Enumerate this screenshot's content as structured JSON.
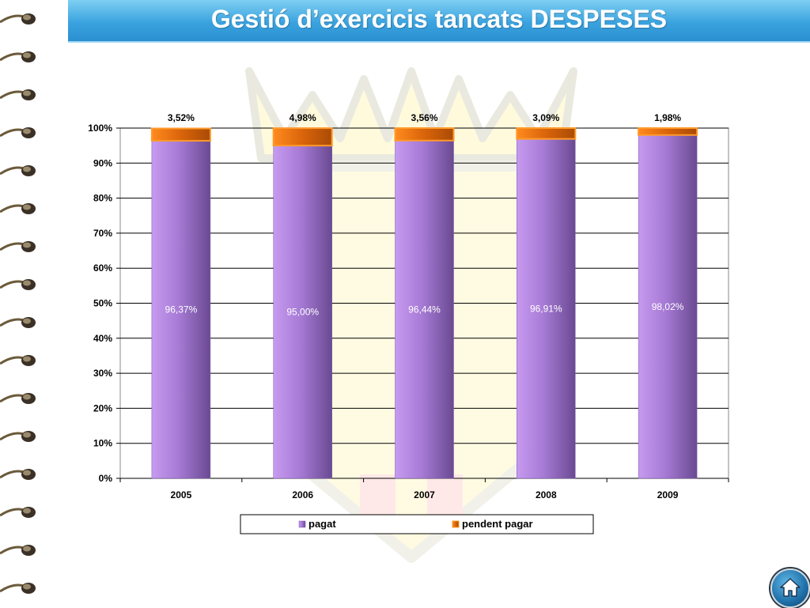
{
  "title": "Gestió d’exercicis tancats DESPESES",
  "icons": {
    "home": "home-icon",
    "spiral": "notebook-spiral-icon"
  },
  "colors": {
    "pagat": "#a97fd6",
    "pendent": "#e8760c",
    "header": "#3aa3df"
  },
  "chart_data": {
    "type": "bar",
    "stacked": true,
    "percent_stacked": true,
    "categories": [
      "2005",
      "2006",
      "2007",
      "2008",
      "2009"
    ],
    "series": [
      {
        "name": "pagat",
        "values": [
          96.37,
          95.0,
          96.44,
          96.91,
          98.02
        ],
        "labels": [
          "96,37%",
          "95,00%",
          "96,44%",
          "96,91%",
          "98,02%"
        ]
      },
      {
        "name": "pendent pagar",
        "values": [
          3.52,
          4.98,
          3.56,
          3.09,
          1.98
        ],
        "labels": [
          "3,52%",
          "4,98%",
          "3,56%",
          "3,09%",
          "1,98%"
        ]
      }
    ],
    "yticks": [
      "0%",
      "10%",
      "20%",
      "30%",
      "40%",
      "50%",
      "60%",
      "70%",
      "80%",
      "90%",
      "100%"
    ],
    "ylim": [
      0,
      100
    ],
    "grid": true,
    "legend_position": "bottom"
  }
}
